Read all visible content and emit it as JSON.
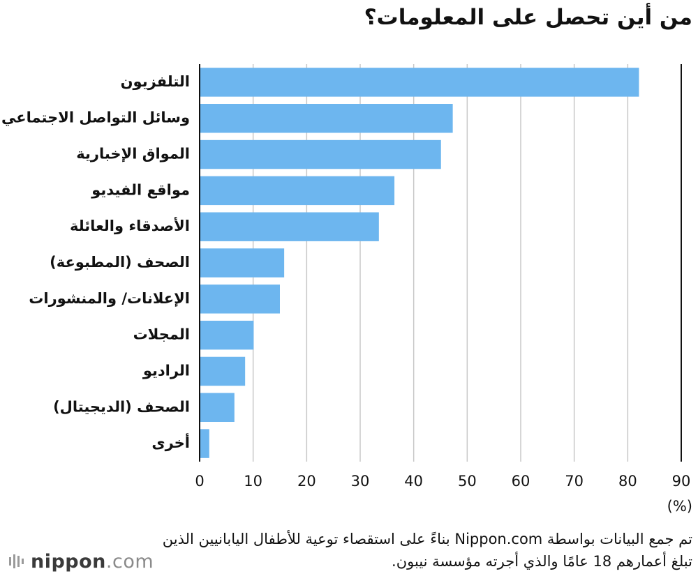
{
  "chart_data": {
    "type": "bar",
    "orientation": "horizontal",
    "title": "من أين تحصل على المعلومات؟",
    "categories": [
      "التلفزيون",
      "وسائل التواصل الاجتماعي",
      "المواق الإخبارية",
      "مواقع الفيديو",
      "الأصدقاء والعائلة",
      "الصحف (المطبوعة)",
      "الإعلانات/ والمنشورات",
      "المجلات",
      "الراديو",
      "الصحف (الديجيتال)",
      "أخرى"
    ],
    "values": [
      82.1,
      47.3,
      45.1,
      36.4,
      33.5,
      15.8,
      15.0,
      10.1,
      8.5,
      6.5,
      1.8
    ],
    "xlim": [
      0,
      90
    ],
    "xticks": [
      "0",
      "10",
      "20",
      "30",
      "40",
      "50",
      "60",
      "70",
      "80",
      "90"
    ],
    "unit_label": "(%)",
    "grid": true,
    "bar_color": "#6db6ef",
    "grid_color": "#c8c8c8"
  },
  "note": "تم جمع البيانات بواسطة Nippon.com بناءً على استقصاء توعية للأطفال اليابانيين الذين تبلغ أعمارهم 18 عامًا والذي أجرته مؤسسة نيبون.",
  "logo": {
    "name": "nippon",
    "suffix": ".com",
    "icon": "nippon-logo-icon"
  }
}
